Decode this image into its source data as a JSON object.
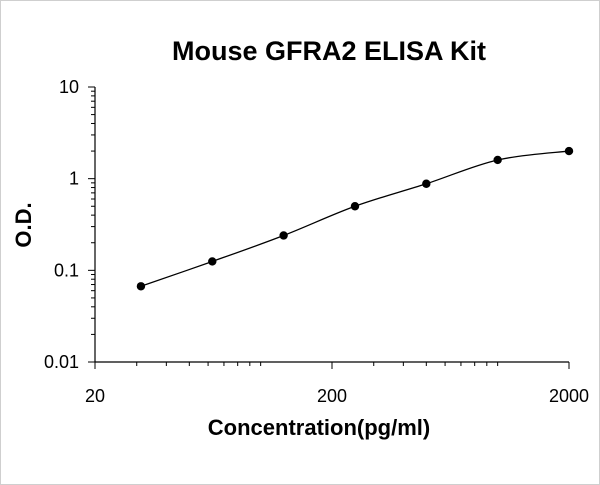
{
  "chart_data": {
    "type": "scatter",
    "title": "Mouse GFRA2 ELISA Kit",
    "xlabel": "Concentration(pg/ml)",
    "ylabel": "O.D.",
    "x_scale": "log",
    "y_scale": "log",
    "xlim": [
      20,
      2000
    ],
    "ylim": [
      0.01,
      10
    ],
    "x_tick_labels": [
      "20",
      "200",
      "2000"
    ],
    "y_tick_labels": [
      "10",
      "1",
      "0.1",
      "0.01"
    ],
    "grid": false,
    "legend": "none",
    "fit_line": "smooth curve through points",
    "series": [
      {
        "x": [
          31.25,
          62.5,
          125,
          250,
          500,
          1000,
          2000
        ],
        "y": [
          0.067,
          0.125,
          0.24,
          0.5,
          0.88,
          1.6,
          2.0
        ]
      }
    ],
    "colors": {
      "marker": "#000000",
      "line": "#000000"
    }
  }
}
